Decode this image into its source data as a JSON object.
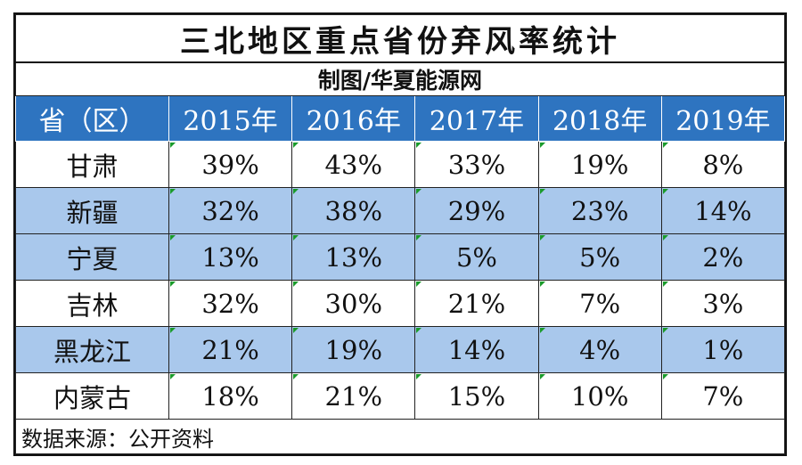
{
  "title": "三北地区重点省份弃风率统计",
  "subtitle": "制图/华夏能源网",
  "columns": [
    "省（区）",
    "2015年",
    "2016年",
    "2017年",
    "2018年",
    "2019年"
  ],
  "rows": [
    {
      "region": "甘肃",
      "values": [
        "39%",
        "43%",
        "33%",
        "19%",
        "8%"
      ]
    },
    {
      "region": "新疆",
      "values": [
        "32%",
        "38%",
        "29%",
        "23%",
        "14%"
      ]
    },
    {
      "region": "宁夏",
      "values": [
        "13%",
        "13%",
        "5%",
        "5%",
        "2%"
      ]
    },
    {
      "region": "吉林",
      "values": [
        "32%",
        "30%",
        "21%",
        "7%",
        "3%"
      ]
    },
    {
      "region": "黑龙江",
      "values": [
        "21%",
        "19%",
        "14%",
        "4%",
        "1%"
      ]
    },
    {
      "region": "内蒙古",
      "values": [
        "18%",
        "21%",
        "15%",
        "10%",
        "7%"
      ]
    }
  ],
  "footer": "数据来源：公开资料",
  "colors": {
    "header_bg": "#2e74c0",
    "header_text": "#ffffff",
    "shaded_row_bg": "#a9c8ec",
    "cell_marker": "#1a9a2a"
  }
}
